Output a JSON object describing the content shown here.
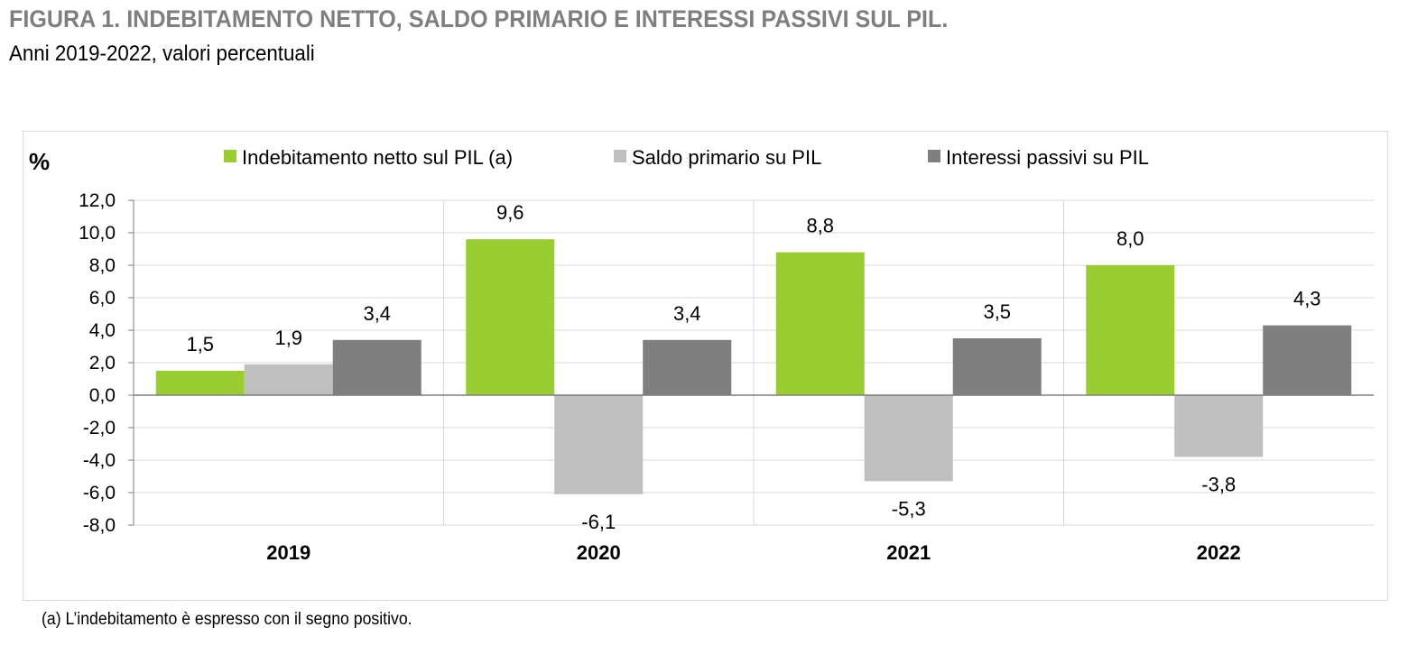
{
  "figure": {
    "title": "FIGURA 1. INDEBITAMENTO NETTO, SALDO PRIMARIO E INTERESSI PASSIVI SUL PIL.",
    "subtitle": "Anni 2019-2022, valori percentuali",
    "note": "(a) L’indebitamento è espresso con il segno positivo."
  },
  "chart_data": {
    "type": "bar",
    "ylabel": "%",
    "ylim": [
      -8,
      12
    ],
    "yticks": [
      12,
      10,
      8,
      6,
      4,
      2,
      0,
      -2,
      -4,
      -6,
      -8
    ],
    "ytick_labels": [
      "12,0",
      "10,0",
      "8,0",
      "6,0",
      "4,0",
      "2,0",
      "0,0",
      "-2,0",
      "-4,0",
      "-6,0",
      "-8,0"
    ],
    "categories": [
      "2019",
      "2020",
      "2021",
      "2022"
    ],
    "grid": true,
    "legend_position": "top",
    "series": [
      {
        "name": "Indebitamento netto sul PIL (a)",
        "color": "#9acd32",
        "values": [
          1.5,
          9.6,
          8.8,
          8.0
        ],
        "labels": [
          "1,5",
          "9,6",
          "8,8",
          "8,0"
        ]
      },
      {
        "name": "Saldo primario su PIL",
        "color": "#bfbfbf",
        "values": [
          1.9,
          -6.1,
          -5.3,
          -3.8
        ],
        "labels": [
          "1,9",
          "-6,1",
          "-5,3",
          "-3,8"
        ]
      },
      {
        "name": "Interessi passivi su PIL",
        "color": "#7f7f7f",
        "values": [
          3.4,
          3.4,
          3.5,
          4.3
        ],
        "labels": [
          "3,4",
          "3,4",
          "3,5",
          "4,3"
        ]
      }
    ]
  }
}
